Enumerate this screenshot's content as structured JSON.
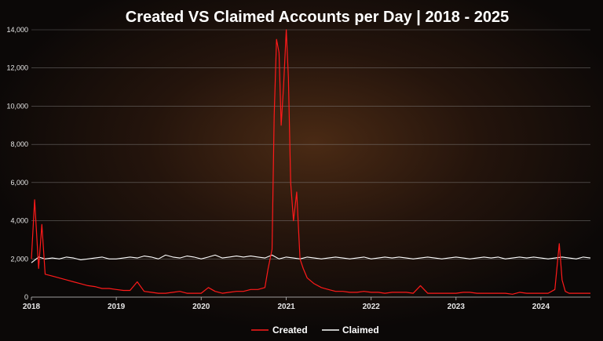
{
  "chart_data": {
    "type": "line",
    "title": "Created VS Claimed Accounts per Day | 2018 - 2025",
    "xlabel": "",
    "ylabel": "",
    "xlim": [
      "2018-01-01",
      "2024-08-01"
    ],
    "ylim": [
      0,
      14000
    ],
    "y_ticks": [
      "0",
      "2,000",
      "4,000",
      "6,000",
      "8,000",
      "10,000",
      "12,000",
      "14,000"
    ],
    "x_ticks": [
      "2018",
      "2019",
      "2020",
      "2021",
      "2022",
      "2023",
      "2024"
    ],
    "grid": "horizontal",
    "legend": "bottom-center",
    "series": [
      {
        "name": "Created",
        "color": "#ff1a1a",
        "x": [
          "2018-01-01",
          "2018-01-15",
          "2018-02-01",
          "2018-02-15",
          "2018-03-01",
          "2018-04-01",
          "2018-05-01",
          "2018-06-01",
          "2018-07-01",
          "2018-08-01",
          "2018-09-01",
          "2018-10-01",
          "2018-11-01",
          "2018-12-01",
          "2019-01-01",
          "2019-02-01",
          "2019-03-01",
          "2019-04-01",
          "2019-05-01",
          "2019-06-01",
          "2019-07-01",
          "2019-08-01",
          "2019-09-01",
          "2019-10-01",
          "2019-11-01",
          "2019-12-01",
          "2020-01-01",
          "2020-02-01",
          "2020-03-01",
          "2020-04-01",
          "2020-05-01",
          "2020-06-01",
          "2020-07-01",
          "2020-08-01",
          "2020-09-01",
          "2020-10-01",
          "2020-10-15",
          "2020-11-01",
          "2020-11-10",
          "2020-11-20",
          "2020-12-01",
          "2020-12-10",
          "2020-12-20",
          "2021-01-01",
          "2021-01-10",
          "2021-01-20",
          "2021-02-01",
          "2021-02-15",
          "2021-03-01",
          "2021-03-15",
          "2021-04-01",
          "2021-05-01",
          "2021-06-01",
          "2021-07-01",
          "2021-08-01",
          "2021-09-01",
          "2021-10-01",
          "2021-11-01",
          "2021-12-01",
          "2022-01-01",
          "2022-02-01",
          "2022-03-01",
          "2022-04-01",
          "2022-05-01",
          "2022-06-01",
          "2022-07-01",
          "2022-08-01",
          "2022-09-01",
          "2022-10-01",
          "2022-11-01",
          "2022-12-01",
          "2023-01-01",
          "2023-02-01",
          "2023-03-01",
          "2023-04-01",
          "2023-05-01",
          "2023-06-01",
          "2023-07-01",
          "2023-08-01",
          "2023-09-01",
          "2023-10-01",
          "2023-11-01",
          "2023-12-01",
          "2024-01-01",
          "2024-02-01",
          "2024-03-01",
          "2024-03-20",
          "2024-04-01",
          "2024-04-15",
          "2024-05-01",
          "2024-06-01",
          "2024-07-01",
          "2024-08-01"
        ],
        "values": [
          2000,
          5100,
          1500,
          3800,
          1200,
          1100,
          1000,
          900,
          800,
          700,
          600,
          550,
          450,
          450,
          400,
          350,
          350,
          800,
          300,
          250,
          200,
          200,
          250,
          300,
          200,
          200,
          200,
          500,
          300,
          200,
          250,
          300,
          300,
          400,
          400,
          500,
          1500,
          2500,
          9500,
          13500,
          12800,
          9000,
          11000,
          14000,
          11500,
          6000,
          4000,
          5500,
          2000,
          1500,
          1000,
          700,
          500,
          400,
          300,
          300,
          250,
          250,
          300,
          250,
          250,
          200,
          250,
          250,
          250,
          200,
          600,
          200,
          200,
          200,
          200,
          200,
          250,
          250,
          200,
          200,
          200,
          200,
          200,
          150,
          250,
          200,
          200,
          200,
          200,
          400,
          2800,
          900,
          300,
          200,
          200,
          200,
          200
        ]
      },
      {
        "name": "Claimed",
        "color": "#ffffff",
        "x": [
          "2018-01-01",
          "2018-02-01",
          "2018-03-01",
          "2018-04-01",
          "2018-05-01",
          "2018-06-01",
          "2018-07-01",
          "2018-08-01",
          "2018-09-01",
          "2018-10-01",
          "2018-11-01",
          "2018-12-01",
          "2019-01-01",
          "2019-02-01",
          "2019-03-01",
          "2019-04-01",
          "2019-05-01",
          "2019-06-01",
          "2019-07-01",
          "2019-08-01",
          "2019-09-01",
          "2019-10-01",
          "2019-11-01",
          "2019-12-01",
          "2020-01-01",
          "2020-02-01",
          "2020-03-01",
          "2020-04-01",
          "2020-05-01",
          "2020-06-01",
          "2020-07-01",
          "2020-08-01",
          "2020-09-01",
          "2020-10-01",
          "2020-11-01",
          "2020-12-01",
          "2021-01-01",
          "2021-02-01",
          "2021-03-01",
          "2021-04-01",
          "2021-05-01",
          "2021-06-01",
          "2021-07-01",
          "2021-08-01",
          "2021-09-01",
          "2021-10-01",
          "2021-11-01",
          "2021-12-01",
          "2022-01-01",
          "2022-02-01",
          "2022-03-01",
          "2022-04-01",
          "2022-05-01",
          "2022-06-01",
          "2022-07-01",
          "2022-08-01",
          "2022-09-01",
          "2022-10-01",
          "2022-11-01",
          "2022-12-01",
          "2023-01-01",
          "2023-02-01",
          "2023-03-01",
          "2023-04-01",
          "2023-05-01",
          "2023-06-01",
          "2023-07-01",
          "2023-08-01",
          "2023-09-01",
          "2023-10-01",
          "2023-11-01",
          "2023-12-01",
          "2024-01-01",
          "2024-02-01",
          "2024-03-01",
          "2024-04-01",
          "2024-05-01",
          "2024-06-01",
          "2024-07-01",
          "2024-08-01"
        ],
        "values": [
          1800,
          2100,
          2000,
          2050,
          2000,
          2100,
          2050,
          1950,
          2000,
          2050,
          2100,
          2000,
          2000,
          2050,
          2100,
          2050,
          2150,
          2100,
          2000,
          2200,
          2100,
          2050,
          2150,
          2100,
          2000,
          2100,
          2200,
          2050,
          2100,
          2150,
          2100,
          2150,
          2100,
          2050,
          2200,
          2000,
          2100,
          2050,
          2000,
          2100,
          2050,
          2000,
          2050,
          2100,
          2050,
          2000,
          2050,
          2100,
          2000,
          2050,
          2100,
          2050,
          2100,
          2050,
          2000,
          2050,
          2100,
          2050,
          2000,
          2050,
          2100,
          2050,
          2000,
          2050,
          2100,
          2050,
          2100,
          2000,
          2050,
          2100,
          2050,
          2100,
          2050,
          2000,
          2050,
          2100,
          2050,
          2000,
          2100,
          2050
        ]
      }
    ]
  }
}
